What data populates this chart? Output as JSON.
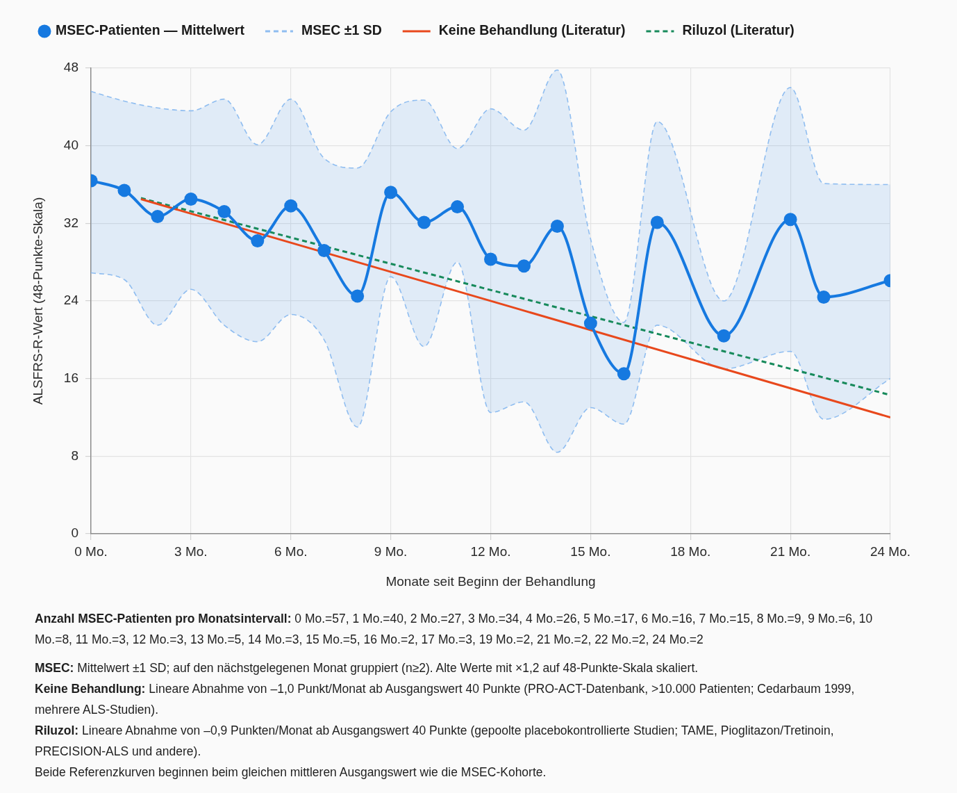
{
  "chart_data": {
    "type": "line",
    "legend": "top left",
    "grid": true,
    "xlabel": "Monate seit Beginn der Behandlung",
    "ylabel": "ALSFRS-R-Wert (48-Punkte-Skala)",
    "xlim": [
      0,
      24
    ],
    "xticks": [
      {
        "value": 0,
        "label": "0 Mo."
      },
      {
        "value": 3,
        "label": "3 Mo."
      },
      {
        "value": 6,
        "label": "6 Mo."
      },
      {
        "value": 9,
        "label": "9 Mo."
      },
      {
        "value": 12,
        "label": "12 Mo."
      },
      {
        "value": 15,
        "label": "15 Mo."
      },
      {
        "value": 18,
        "label": "18 Mo."
      },
      {
        "value": 21,
        "label": "21 Mo."
      },
      {
        "value": 24,
        "label": "24 Mo."
      }
    ],
    "ylim": [
      0,
      48
    ],
    "yticks": [
      0,
      8,
      16,
      24,
      32,
      40,
      48
    ],
    "series": [
      {
        "name": "MSEC-Patienten — Mittelwert",
        "type": "line",
        "color": "#1679e0",
        "marker": "circle",
        "x": [
          0,
          1,
          2,
          3,
          4,
          5,
          6,
          7,
          8,
          9,
          10,
          11,
          12,
          13,
          14,
          15,
          16,
          17,
          19,
          21,
          22,
          24
        ],
        "values": [
          36.4,
          35.4,
          32.7,
          34.5,
          33.2,
          30.2,
          33.8,
          29.2,
          24.5,
          35.2,
          32.1,
          33.7,
          28.3,
          27.6,
          31.7,
          21.7,
          16.5,
          32.1,
          20.4,
          32.4,
          24.4,
          26.1
        ],
        "upper": [
          45.6,
          44.6,
          43.9,
          43.6,
          44.8,
          40.1,
          44.8,
          38.7,
          37.7,
          43.5,
          44.7,
          39.7,
          43.8,
          41.6,
          47.8,
          30.4,
          21.8,
          42.5,
          24.0,
          46.0,
          36.1,
          36.0
        ],
        "lower": [
          26.9,
          26.2,
          21.5,
          25.2,
          21.5,
          19.8,
          22.6,
          20.0,
          11.0,
          26.5,
          19.3,
          28.0,
          12.5,
          13.6,
          8.4,
          13.0,
          11.3,
          21.5,
          17.0,
          18.8,
          11.8,
          16.0
        ]
      },
      {
        "name": "MSEC ±1 SD",
        "type": "line",
        "color": "#8fbdf0",
        "line_style": "dashed",
        "x": [
          0,
          1,
          2,
          3,
          4,
          5,
          6,
          7,
          8,
          9,
          10,
          11,
          12,
          13,
          14,
          15,
          16,
          17,
          19,
          21,
          22,
          24
        ],
        "values": [
          45.6,
          44.6,
          43.9,
          43.6,
          44.8,
          40.1,
          44.8,
          38.7,
          37.7,
          43.5,
          44.7,
          39.7,
          43.8,
          41.6,
          47.8,
          30.4,
          21.8,
          42.5,
          24.0,
          46.0,
          36.1,
          36.0
        ]
      },
      {
        "type": "line",
        "color": "#8fbdf0",
        "line_style": "dashed",
        "x": [
          0,
          1,
          2,
          3,
          4,
          5,
          6,
          7,
          8,
          9,
          10,
          11,
          12,
          13,
          14,
          15,
          16,
          17,
          19,
          21,
          22,
          24
        ],
        "values": [
          26.9,
          26.2,
          21.5,
          25.2,
          21.5,
          19.8,
          22.6,
          20.0,
          11.0,
          26.5,
          19.3,
          28.0,
          12.5,
          13.6,
          8.4,
          13.0,
          11.3,
          21.5,
          17.0,
          18.8,
          11.8,
          16.0
        ]
      },
      {
        "name": "Keine Behandlung (Literatur)",
        "type": "line",
        "color": "#e8481c",
        "x": [
          1.5,
          24
        ],
        "values": [
          34.5,
          12
        ]
      },
      {
        "name": "Riluzol (Literatur)",
        "type": "line",
        "color": "#178a5b",
        "line_style": "dashed",
        "x": [
          1.5,
          24
        ],
        "values": [
          34.6,
          14.3
        ]
      }
    ],
    "annotations": [
      "Anzahl MSEC-Patienten pro Monatsintervall: 0 Mo.=57, 1 Mo.=40, 2 Mo.=27, 3 Mo.=34, 4 Mo.=26, 5 Mo.=17, 6 Mo.=16, 7 Mo.=15, 8 Mo.=9, 9 Mo.=6, 10 Mo.=8, 11 Mo.=3, 12 Mo.=3, 13 Mo.=5, 14 Mo.=3, 15 Mo.=5, 16 Mo.=2, 17 Mo.=3, 19 Mo.=2, 21 Mo.=2, 22 Mo.=2, 24 Mo.=2",
      "MSEC: Mittelwert ±1 SD; auf den nächstgelegenen Monat gruppiert (n≥2). Alte Werte mit ×1,2 auf 48-Punkte-Skala skaliert.",
      "Keine Behandlung: Lineare Abnahme von –1,0 Punkt/Monat ab Ausgangswert 40 Punkte (PRO-ACT-Datenbank, >10.000 Patienten; Cedarbaum 1999, mehrere ALS-Studien).",
      "Riluzol: Lineare Abnahme von –0,9 Punkten/Monat ab Ausgangswert 40 Punkte (gepoolte placebokontrollierte Studien; TAME, Pioglitazon/Tretinoin, PRECISION-ALS und andere).",
      "Beide Referenzkurven beginnen beim gleichen mittleren Ausgangswert wie die MSEC-Kohorte."
    ]
  }
}
